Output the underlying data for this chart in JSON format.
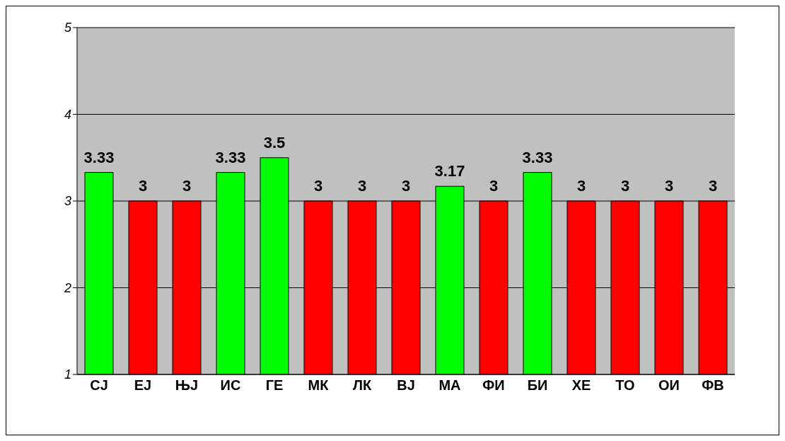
{
  "chart_data": {
    "type": "bar",
    "categories": [
      "СЈ",
      "ЕЈ",
      "ЊЈ",
      "ИС",
      "ГЕ",
      "МК",
      "ЛК",
      "ВЈ",
      "МА",
      "ФИ",
      "БИ",
      "ХЕ",
      "ТО",
      "ОИ",
      "ФВ"
    ],
    "values": [
      3.33,
      3,
      3,
      3.33,
      3.5,
      3,
      3,
      3,
      3.17,
      3,
      3.33,
      3,
      3,
      3,
      3
    ],
    "colors": [
      "#00ff00",
      "#ff0000",
      "#ff0000",
      "#00ff00",
      "#00ff00",
      "#ff0000",
      "#ff0000",
      "#ff0000",
      "#00ff00",
      "#ff0000",
      "#00ff00",
      "#ff0000",
      "#ff0000",
      "#ff0000",
      "#ff0000"
    ],
    "ylim": [
      1,
      5
    ],
    "yticks": [
      1,
      2,
      3,
      4,
      5
    ],
    "grid": "y",
    "data_labels": true
  }
}
